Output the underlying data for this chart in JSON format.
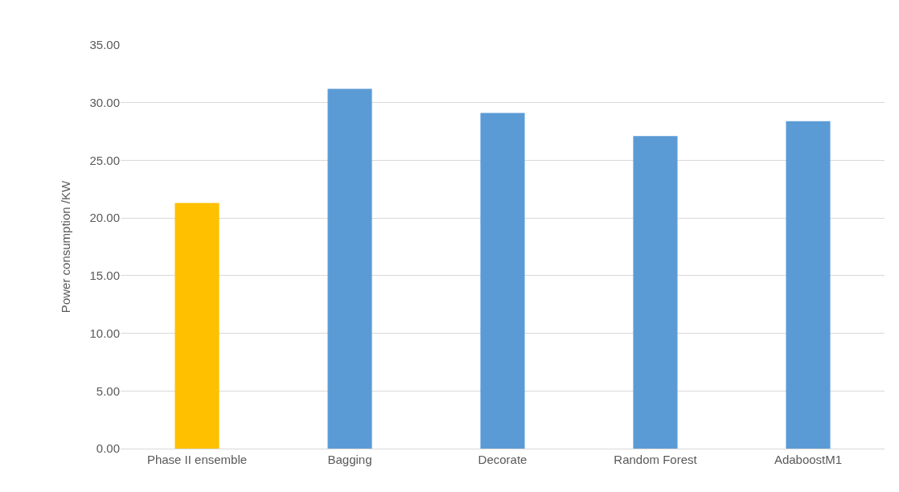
{
  "chart_data": {
    "type": "bar",
    "ylabel": "Power consumption /KW",
    "categories": [
      "Phase II ensemble",
      "Bagging",
      "Decorate",
      "Random Forest",
      "AdaboostM1"
    ],
    "values": [
      21.3,
      31.2,
      29.1,
      27.1,
      28.4
    ],
    "colors": [
      "#ffc000",
      "#5b9bd5",
      "#5b9bd5",
      "#5b9bd5",
      "#5b9bd5"
    ],
    "ylim": [
      0,
      35
    ],
    "yticks": [
      {
        "value": 0,
        "label": "0.00"
      },
      {
        "value": 5,
        "label": "5.00"
      },
      {
        "value": 10,
        "label": "10.00"
      },
      {
        "value": 15,
        "label": "15.00"
      },
      {
        "value": 20,
        "label": "20.00"
      },
      {
        "value": 25,
        "label": "25.00"
      },
      {
        "value": 30,
        "label": "30.00"
      },
      {
        "value": 35,
        "label": "35.00"
      }
    ],
    "grid": "y"
  }
}
